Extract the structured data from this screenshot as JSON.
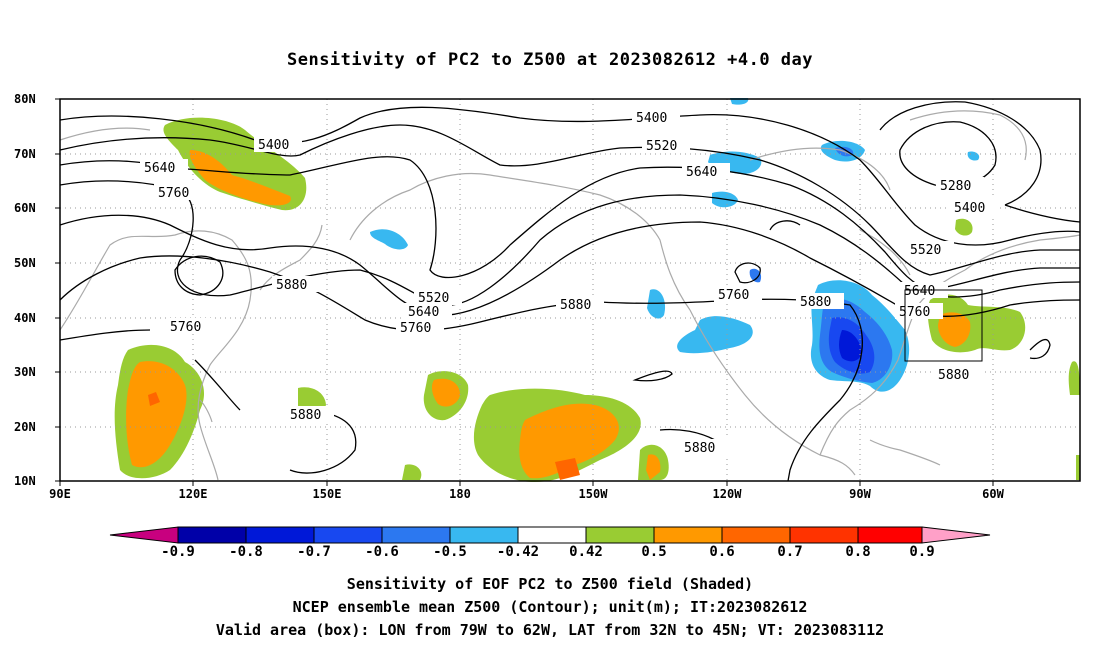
{
  "title": "Sensitivity of PC2 to Z500 at 2023082612 +4.0 day",
  "lat_ticks": [
    "80N",
    "70N",
    "60N",
    "50N",
    "40N",
    "30N",
    "20N",
    "10N"
  ],
  "lon_ticks": [
    "90E",
    "120E",
    "150E",
    "180",
    "150W",
    "120W",
    "90W",
    "60W"
  ],
  "contour_levels": [
    "5280",
    "5400",
    "5520",
    "5640",
    "5760",
    "5880"
  ],
  "colorbar": {
    "labels": [
      "-0.9",
      "-0.8",
      "-0.7",
      "-0.6",
      "-0.5",
      "-0.42",
      "0.42",
      "0.5",
      "0.6",
      "0.7",
      "0.8",
      "0.9"
    ],
    "colors": [
      "#c8007f",
      "#0000a8",
      "#0018d8",
      "#1848f0",
      "#2c78f0",
      "#38b8f0",
      "#ffffff",
      "#99cc33",
      "#ff9900",
      "#ff6600",
      "#ff3300",
      "#ff0000",
      "#ffa0c8"
    ]
  },
  "captions": {
    "line1": "Sensitivity of EOF PC2 to Z500 field (Shaded)",
    "line2": "NCEP ensemble mean Z500 (Contour); unit(m); IT:2023082612",
    "line3": "Valid area (box): LON from 79W to 62W, LAT from 32N to 45N; VT: 2023083112"
  }
}
